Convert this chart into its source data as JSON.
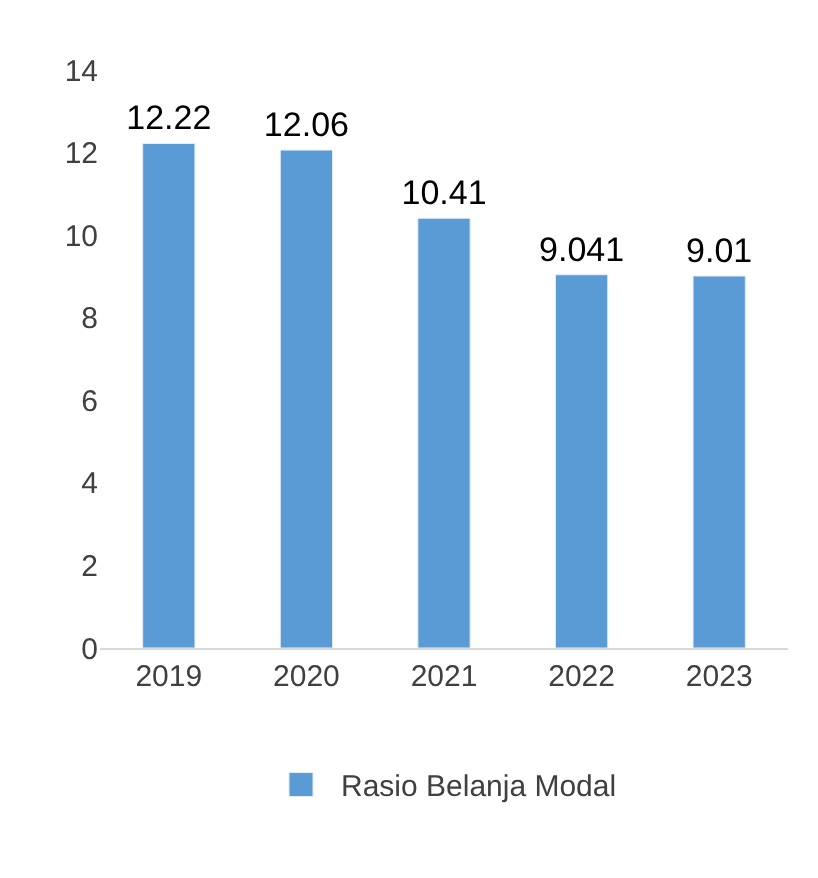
{
  "chart_data": {
    "type": "bar",
    "categories": [
      "2019",
      "2020",
      "2021",
      "2022",
      "2023"
    ],
    "series": [
      {
        "name": "Rasio Belanja Modal",
        "color": "#5b9bd5",
        "values": [
          12.22,
          12.06,
          10.41,
          9.041,
          9.01
        ]
      }
    ],
    "ylim": [
      0,
      14
    ],
    "yticks": [
      0,
      2,
      4,
      6,
      8,
      10,
      12,
      14
    ],
    "data_labels": true,
    "legend": "bottom"
  }
}
